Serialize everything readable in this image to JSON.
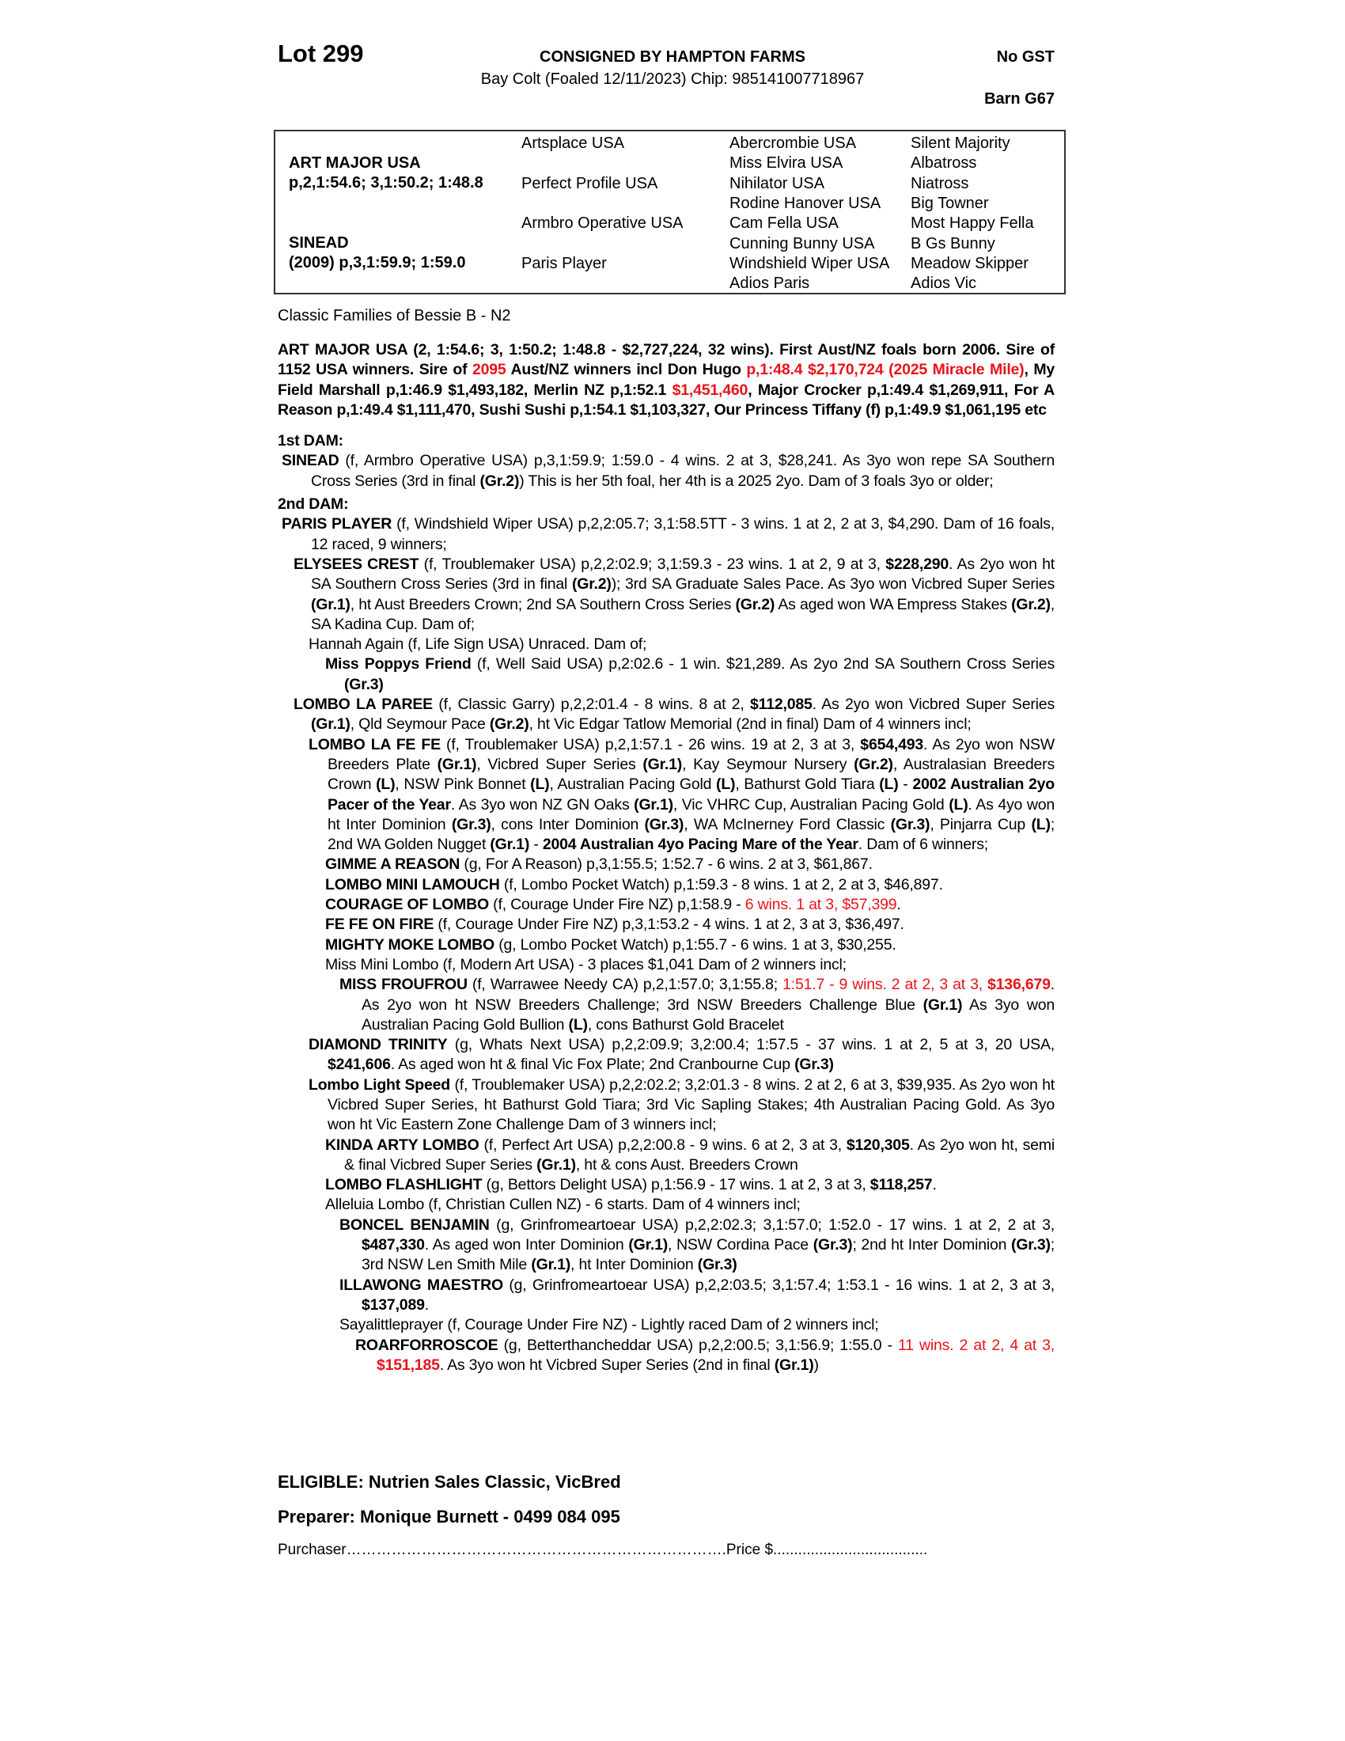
{
  "header": {
    "lot": "Lot 299",
    "consigned": "CONSIGNED BY HAMPTON FARMS",
    "gst": "No GST",
    "description": "Bay Colt (Foaled 12/11/2023) Chip: 985141007718967",
    "barn": "Barn G67"
  },
  "pedigree": {
    "sire_name": "ART MAJOR USA",
    "sire_record": "p,2,1:54.6; 3,1:50.2; 1:48.8",
    "dam_name": "SINEAD",
    "dam_record": "(2009) p,3,1:59.9; 1:59.0",
    "gen2": [
      "Artsplace USA",
      "Perfect Profile USA",
      "Armbro Operative USA",
      "Paris Player"
    ],
    "gen3": [
      "Abercrombie USA",
      "Miss Elvira USA",
      "Nihilator USA",
      "Rodine Hanover USA",
      "Cam Fella USA",
      "Cunning Bunny USA",
      "Windshield Wiper USA",
      "Adios Paris"
    ],
    "gen4": [
      "Silent Majority",
      "Albatross",
      "Niatross",
      "Big Towner",
      "Most Happy Fella",
      "B Gs Bunny",
      "Meadow Skipper",
      "Adios Vic"
    ]
  },
  "family": "Classic Families of Bessie B - N2",
  "entries": [
    {
      "kind": "sire",
      "segs": [
        [
          "ART MAJOR USA (2, 1:54.6; 3, 1:50.2; 1:48.8 - $2,727,224, 32 wins). First Aust/NZ foals born 2006. Sire of 1152 USA winners. Sire of ",
          "b"
        ],
        [
          "2095",
          "rb"
        ],
        [
          " Aust/NZ winners incl Don Hugo ",
          "b"
        ],
        [
          "p,1:48.4 $2,170,724 (2025 Miracle Mile)",
          "rb"
        ],
        [
          ", My Field Marshall p,1:46.9 $1,493,182, Merlin NZ p,1:52.1 ",
          "b"
        ],
        [
          "$1,451,460",
          "rb"
        ],
        [
          ", Major Crocker p,1:49.4 $1,269,911, For A Reason p,1:49.4 $1,111,470, Sushi Sushi p,1:54.1 $1,103,327, Our Princess Tiffany (f) p,1:49.9 $1,061,195 etc",
          "b"
        ]
      ]
    },
    {
      "kind": "damhead",
      "segs": [
        [
          "1st DAM:",
          "b"
        ]
      ]
    },
    {
      "kind": "l0",
      "segs": [
        [
          "SINEAD",
          "b"
        ],
        [
          " (f, Armbro Operative USA) p,3,1:59.9; 1:59.0 - 4 wins. 2 at 3, $28,241. As 3yo won repe SA Southern Cross Series (3rd in final ",
          ""
        ],
        [
          "(Gr.2)",
          "b"
        ],
        [
          ") This is her 5th foal, her 4th is a 2025 2yo. Dam of 3 foals 3yo or older;",
          ""
        ]
      ]
    },
    {
      "kind": "damhead",
      "segs": [
        [
          "2nd DAM:",
          "b"
        ]
      ]
    },
    {
      "kind": "l0",
      "segs": [
        [
          "PARIS PLAYER",
          "b"
        ],
        [
          " (f, Windshield Wiper USA) p,2,2:05.7; 3,1:58.5TT - 3 wins. 1 at 2, 2 at 3, $4,290. Dam of 16 foals, 12 raced, 9 winners;",
          ""
        ]
      ]
    },
    {
      "kind": "l1",
      "segs": [
        [
          "ELYSEES CREST",
          "b"
        ],
        [
          " (f, Troublemaker USA) p,2,2:02.9; 3,1:59.3 - 23 wins. 1 at 2, 9 at 3, ",
          ""
        ],
        [
          "$228,290",
          "b"
        ],
        [
          ". As 2yo won ht SA Southern Cross Series (3rd in final ",
          ""
        ],
        [
          "(Gr.2)",
          "b"
        ],
        [
          "); 3rd SA Graduate Sales Pace. As 3yo won Vicbred Super Series ",
          ""
        ],
        [
          "(Gr.1)",
          "b"
        ],
        [
          ", ht Aust Breeders Crown; 2nd SA Southern Cross Series ",
          ""
        ],
        [
          "(Gr.2)",
          "b"
        ],
        [
          " As aged won WA Empress Stakes ",
          ""
        ],
        [
          "(Gr.2)",
          "b"
        ],
        [
          ", SA Kadina Cup. Dam of;",
          ""
        ]
      ]
    },
    {
      "kind": "l2",
      "segs": [
        [
          "Hannah Again (f, Life Sign USA) Unraced. Dam of;",
          ""
        ]
      ]
    },
    {
      "kind": "l3",
      "segs": [
        [
          "Miss Poppys Friend",
          "b"
        ],
        [
          " (f, Well Said USA) p,2:02.6 - 1 win. $21,289. As 2yo 2nd SA Southern Cross Series ",
          ""
        ],
        [
          "(Gr.3)",
          "b"
        ]
      ]
    },
    {
      "kind": "l1",
      "segs": [
        [
          "LOMBO LA PAREE",
          "b"
        ],
        [
          " (f, Classic Garry) p,2,2:01.4 - 8 wins. 8 at 2, ",
          ""
        ],
        [
          "$112,085",
          "b"
        ],
        [
          ". As 2yo won Vicbred Super Series ",
          ""
        ],
        [
          "(Gr.1)",
          "b"
        ],
        [
          ", Qld Seymour Pace ",
          ""
        ],
        [
          "(Gr.2)",
          "b"
        ],
        [
          ", ht Vic Edgar Tatlow Memorial (2nd in final) Dam of 4 winners incl;",
          ""
        ]
      ]
    },
    {
      "kind": "l2",
      "segs": [
        [
          "LOMBO LA FE FE",
          "b"
        ],
        [
          " (f, Troublemaker USA) p,2,1:57.1 - 26 wins. 19 at 2, 3 at 3, ",
          ""
        ],
        [
          "$654,493",
          "b"
        ],
        [
          ". As 2yo won NSW Breeders Plate ",
          ""
        ],
        [
          "(Gr.1)",
          "b"
        ],
        [
          ", Vicbred Super Series ",
          ""
        ],
        [
          "(Gr.1)",
          "b"
        ],
        [
          ",  Kay Seymour Nursery ",
          ""
        ],
        [
          "(Gr.2)",
          "b"
        ],
        [
          ", Australasian Breeders Crown ",
          ""
        ],
        [
          "(L)",
          "b"
        ],
        [
          ", NSW Pink Bonnet ",
          ""
        ],
        [
          "(L)",
          "b"
        ],
        [
          ", Australian Pacing Gold ",
          ""
        ],
        [
          "(L)",
          "b"
        ],
        [
          ", Bathurst Gold Tiara ",
          ""
        ],
        [
          "(L)",
          "b"
        ],
        [
          " - ",
          ""
        ],
        [
          "2002 Australian 2yo Pacer of the Year",
          "b"
        ],
        [
          ". As 3yo won NZ GN Oaks ",
          ""
        ],
        [
          "(Gr.1)",
          "b"
        ],
        [
          ", Vic VHRC Cup, Australian Pacing Gold ",
          ""
        ],
        [
          "(L)",
          "b"
        ],
        [
          ". As 4yo won ht Inter Dominion ",
          ""
        ],
        [
          "(Gr.3)",
          "b"
        ],
        [
          ", cons Inter Dominion ",
          ""
        ],
        [
          "(Gr.3)",
          "b"
        ],
        [
          ", WA McInerney Ford Classic ",
          ""
        ],
        [
          "(Gr.3)",
          "b"
        ],
        [
          ", Pinjarra Cup ",
          ""
        ],
        [
          "(L)",
          "b"
        ],
        [
          "; 2nd WA Golden Nugget ",
          ""
        ],
        [
          "(Gr.1)",
          "b"
        ],
        [
          " - ",
          ""
        ],
        [
          "2004 Australian 4yo Pacing Mare of the Year",
          "b"
        ],
        [
          ". Dam of 6 winners;",
          ""
        ]
      ]
    },
    {
      "kind": "l3",
      "segs": [
        [
          "GIMME A REASON",
          "b"
        ],
        [
          " (g, For A Reason) p,3,1:55.5; 1:52.7 - 6 wins. 2 at 3, $61,867.",
          ""
        ]
      ]
    },
    {
      "kind": "l3",
      "segs": [
        [
          "LOMBO MINI LAMOUCH",
          "b"
        ],
        [
          " (f, Lombo Pocket Watch) p,1:59.3 - 8 wins. 1 at 2, 2 at 3, $46,897.",
          ""
        ]
      ]
    },
    {
      "kind": "l3",
      "segs": [
        [
          "COURAGE OF LOMBO",
          "b"
        ],
        [
          " (f, Courage Under Fire NZ) p,1:58.9 - ",
          ""
        ],
        [
          "6 wins. 1 at 3, $57,399",
          "r"
        ],
        [
          ".",
          ""
        ]
      ]
    },
    {
      "kind": "l3",
      "segs": [
        [
          "FE FE ON FIRE",
          "b"
        ],
        [
          " (f, Courage Under Fire NZ) p,3,1:53.2 - 4 wins. 1 at 2, 3 at 3, $36,497.",
          ""
        ]
      ]
    },
    {
      "kind": "l3",
      "segs": [
        [
          "MIGHTY MOKE LOMBO",
          "b"
        ],
        [
          " (g, Lombo Pocket Watch) p,1:55.7 - 6 wins. 1 at 3, $30,255.",
          ""
        ]
      ]
    },
    {
      "kind": "l3",
      "segs": [
        [
          "Miss Mini Lombo (f, Modern Art USA) - 3 places $1,041 Dam of 2 winners incl;",
          ""
        ]
      ]
    },
    {
      "kind": "l4",
      "segs": [
        [
          "MISS FROUFROU",
          "b"
        ],
        [
          " (f, Warrawee Needy CA) p,2,1:57.0; 3,1:55.8; ",
          ""
        ],
        [
          "1:51.7 - 9 wins. 2 at 2, 3 at 3, ",
          "r"
        ],
        [
          "$136,679",
          "rb"
        ],
        [
          ". As 2yo won ht NSW Breeders Challenge; 3rd NSW Breeders Challenge Blue ",
          ""
        ],
        [
          "(Gr.1)",
          "b"
        ],
        [
          " As 3yo won Australian Pacing Gold Bullion ",
          ""
        ],
        [
          "(L)",
          "b"
        ],
        [
          ", cons Bathurst Gold Bracelet",
          ""
        ]
      ]
    },
    {
      "kind": "l2",
      "segs": [
        [
          "DIAMOND TRINITY",
          "b"
        ],
        [
          " (g, Whats Next USA) p,2,2:09.9; 3,2:00.4; 1:57.5 - 37 wins. 1 at 2, 5 at 3, 20 USA, ",
          ""
        ],
        [
          "$241,606",
          "b"
        ],
        [
          ". As aged won ht & final Vic Fox Plate; 2nd Cranbourne Cup ",
          ""
        ],
        [
          "(Gr.3)",
          "b"
        ]
      ]
    },
    {
      "kind": "l2",
      "segs": [
        [
          "Lombo Light Speed",
          "b"
        ],
        [
          " (f, Troublemaker USA) p,2,2:02.2; 3,2:01.3 - 8 wins. 2 at 2, 6 at 3, $39,935. As 2yo won ht Vicbred Super Series, ht Bathurst Gold Tiara; 3rd Vic Sapling Stakes; 4th Australian Pacing Gold. As 3yo won ht Vic Eastern Zone Challenge Dam of 3 winners incl;",
          ""
        ]
      ]
    },
    {
      "kind": "l3",
      "segs": [
        [
          "KINDA ARTY LOMBO",
          "b"
        ],
        [
          " (f, Perfect Art USA) p,2,2:00.8 - 9 wins. 6 at 2, 3 at 3, ",
          ""
        ],
        [
          "$120,305",
          "b"
        ],
        [
          ". As 2yo won ht, semi & final Vicbred Super Series ",
          ""
        ],
        [
          "(Gr.1)",
          "b"
        ],
        [
          ", ht & cons Aust. Breeders Crown",
          ""
        ]
      ]
    },
    {
      "kind": "l3",
      "segs": [
        [
          "LOMBO FLASHLIGHT",
          "b"
        ],
        [
          " (g, Bettors Delight USA) p,1:56.9 - 17 wins. 1 at 2, 3 at 3, ",
          ""
        ],
        [
          "$118,257",
          "b"
        ],
        [
          ".",
          ""
        ]
      ]
    },
    {
      "kind": "l3",
      "segs": [
        [
          "Alleluia Lombo (f, Christian Cullen NZ) - 6 starts. Dam of 4 winners incl;",
          ""
        ]
      ]
    },
    {
      "kind": "l4",
      "segs": [
        [
          "BONCEL BENJAMIN",
          "b"
        ],
        [
          " (g, Grinfromeartoear USA) p,2,2:02.3; 3,1:57.0; 1:52.0 - 17 wins. 1 at 2, 2 at 3, ",
          ""
        ],
        [
          "$487,330",
          "b"
        ],
        [
          ". As aged won Inter Dominion ",
          ""
        ],
        [
          "(Gr.1)",
          "b"
        ],
        [
          ", NSW Cordina Pace ",
          ""
        ],
        [
          "(Gr.3)",
          "b"
        ],
        [
          "; 2nd ht Inter Dominion ",
          ""
        ],
        [
          "(Gr.3)",
          "b"
        ],
        [
          "; 3rd NSW Len Smith Mile ",
          ""
        ],
        [
          "(Gr.1)",
          "b"
        ],
        [
          ", ht Inter Dominion ",
          ""
        ],
        [
          "(Gr.3)",
          "b"
        ]
      ]
    },
    {
      "kind": "l4",
      "segs": [
        [
          "ILLAWONG MAESTRO",
          "b"
        ],
        [
          " (g, Grinfromeartoear USA) p,2,2:03.5; 3,1:57.4; 1:53.1 - 16 wins. 1 at 2, 3 at 3, ",
          ""
        ],
        [
          "$137,089",
          "b"
        ],
        [
          ".",
          ""
        ]
      ]
    },
    {
      "kind": "l4",
      "segs": [
        [
          "Sayalittleprayer (f, Courage Under Fire NZ) - Lightly raced Dam of 2 winners incl;",
          ""
        ]
      ]
    },
    {
      "kind": "l5",
      "segs": [
        [
          "ROARFORROSCOE",
          "b"
        ],
        [
          " (g, Betterthancheddar USA) p,2,2:00.5; 3,1:56.9; 1:55.0 - ",
          ""
        ],
        [
          "11 wins. 2 at 2, 4 at 3, ",
          "r"
        ],
        [
          "$151,185",
          "rb"
        ],
        [
          ". As 3yo won ht Vicbred Super Series (2nd in final ",
          ""
        ],
        [
          "(Gr.1)",
          "b"
        ],
        [
          ")",
          ""
        ]
      ]
    }
  ],
  "footer": {
    "eligible": "ELIGIBLE: Nutrien Sales Classic, VicBred",
    "preparer": "Preparer: Monique Burnett - 0499 084 095",
    "purchaser": "Purchaser………………………………………………………………….Price $....................................."
  },
  "colors": {
    "highlight": "#e8141a",
    "text": "#000000"
  }
}
